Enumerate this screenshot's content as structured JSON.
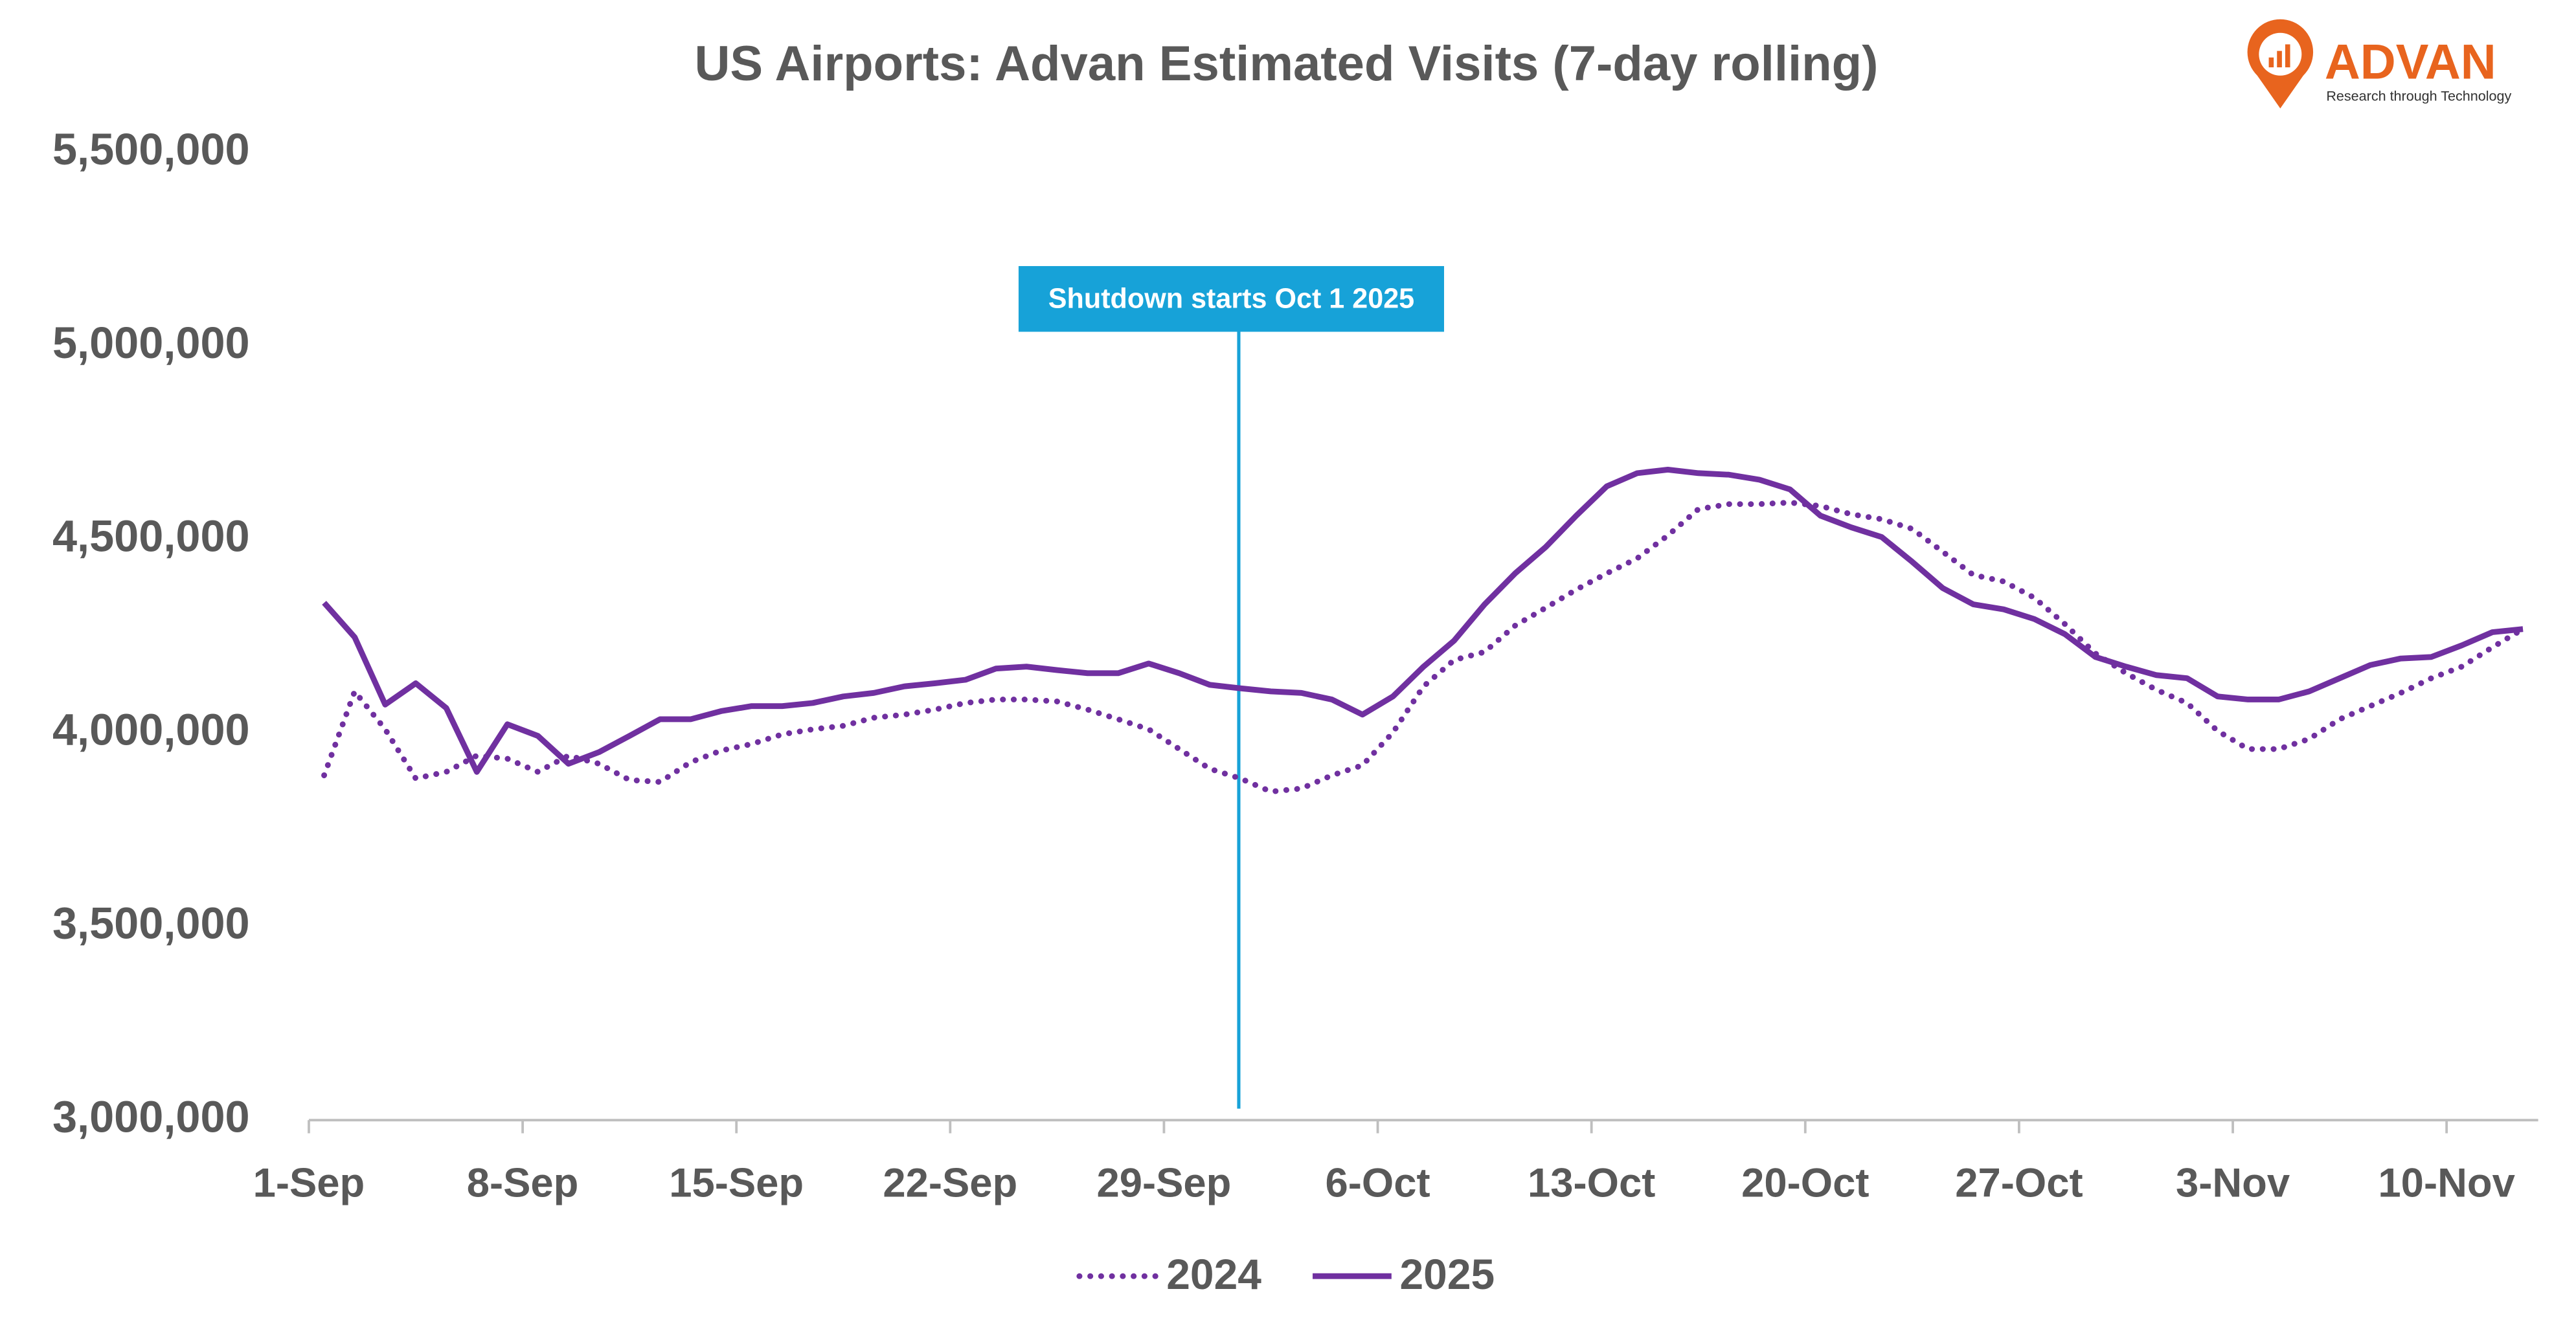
{
  "chart_data": {
    "type": "line",
    "title": "US Airports: Advan Estimated Visits (7-day rolling)",
    "categories": [
      "1-Sep",
      null,
      null,
      null,
      null,
      null,
      null,
      "8-Sep",
      null,
      null,
      null,
      null,
      null,
      null,
      "15-Sep",
      null,
      null,
      null,
      null,
      null,
      null,
      "22-Sep",
      null,
      null,
      null,
      null,
      null,
      null,
      "29-Sep",
      null,
      null,
      null,
      null,
      null,
      null,
      "6-Oct",
      null,
      null,
      null,
      null,
      null,
      null,
      "13-Oct",
      null,
      null,
      null,
      null,
      null,
      null,
      "20-Oct",
      null,
      null,
      null,
      null,
      null,
      null,
      "27-Oct",
      null,
      null,
      null,
      null,
      null,
      null,
      "3-Nov",
      null,
      null,
      null,
      null,
      null,
      null,
      "10-Nov",
      null,
      null
    ],
    "series": [
      {
        "name": "2024",
        "color": "#7030a0",
        "dash": "dotted",
        "values": [
          3891000,
          4108000,
          4010000,
          3883000,
          3900000,
          3942000,
          3934000,
          3900000,
          3942000,
          3921000,
          3879000,
          3874000,
          3925000,
          3955000,
          3972000,
          3997000,
          4010000,
          4019000,
          4040000,
          4048000,
          4061000,
          4078000,
          4087000,
          4087000,
          4082000,
          4061000,
          4036000,
          4010000,
          3959000,
          3908000,
          3883000,
          3849000,
          3857000,
          3891000,
          3917000,
          4002000,
          4121000,
          4189000,
          4210000,
          4278000,
          4324000,
          4371000,
          4413000,
          4452000,
          4511000,
          4579000,
          4592000,
          4592000,
          4596000,
          4587000,
          4566000,
          4553000,
          4528000,
          4469000,
          4409000,
          4392000,
          4350000,
          4282000,
          4206000,
          4155000,
          4112000,
          4078000,
          4006000,
          3959000,
          3959000,
          3985000,
          4036000,
          4070000,
          4104000,
          4142000,
          4172000,
          4222000,
          4269000
        ]
      },
      {
        "name": "2025",
        "color": "#7030a0",
        "dash": "solid",
        "values": [
          4337000,
          4248000,
          4074000,
          4129000,
          4065000,
          3900000,
          4023000,
          3993000,
          3921000,
          3951000,
          3993000,
          4036000,
          4036000,
          4057000,
          4070000,
          4070000,
          4078000,
          4095000,
          4104000,
          4121000,
          4129000,
          4138000,
          4167000,
          4172000,
          4163000,
          4155000,
          4155000,
          4180000,
          4155000,
          4125000,
          4116000,
          4108000,
          4104000,
          4087000,
          4048000,
          4095000,
          4172000,
          4239000,
          4333000,
          4413000,
          4481000,
          4562000,
          4638000,
          4672000,
          4681000,
          4672000,
          4668000,
          4655000,
          4630000,
          4562000,
          4532000,
          4507000,
          4443000,
          4375000,
          4333000,
          4320000,
          4295000,
          4256000,
          4197000,
          4172000,
          4150000,
          4142000,
          4095000,
          4087000,
          4087000,
          4108000,
          4142000,
          4176000,
          4193000,
          4197000,
          4227000,
          4261000,
          4269000
        ]
      }
    ],
    "ylim": [
      3000000,
      5500000
    ],
    "yticks": [
      {
        "value": 3000000,
        "label": "3,000,000"
      },
      {
        "value": 3500000,
        "label": "3,500,000"
      },
      {
        "value": 4000000,
        "label": "4,000,000"
      },
      {
        "value": 4500000,
        "label": "4,500,000"
      },
      {
        "value": 5000000,
        "label": "5,000,000"
      },
      {
        "value": 5500000,
        "label": "5,500,000"
      }
    ],
    "grid": false,
    "legend": "bottom",
    "annotations": [
      {
        "text": "Shutdown starts Oct 1 2025",
        "color": "#17a2d8"
      }
    ]
  },
  "logo": {
    "name": "ADVAN",
    "tagline": "Research through Technology"
  }
}
